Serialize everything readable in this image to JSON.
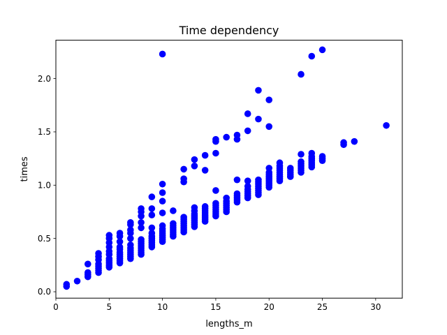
{
  "chart_data": {
    "type": "scatter",
    "title": "Time dependency",
    "xlabel": "lengths_m",
    "ylabel": "times",
    "xlim": [
      0,
      32.5
    ],
    "ylim": [
      -0.06,
      2.36
    ],
    "xticks": [
      0,
      5,
      10,
      15,
      20,
      25,
      30
    ],
    "yticks": [
      0.0,
      0.5,
      1.0,
      1.5,
      2.0
    ],
    "xtick_labels": [
      "0",
      "5",
      "10",
      "15",
      "20",
      "25",
      "30"
    ],
    "ytick_labels": [
      "0.0",
      "0.5",
      "1.0",
      "1.5",
      "2.0"
    ],
    "grid": false,
    "legend": false,
    "marker_color": "#0000ff",
    "series": [
      {
        "points": [
          [
            1,
            0.05
          ],
          [
            1,
            0.07
          ],
          [
            2,
            0.1
          ],
          [
            3,
            0.14
          ],
          [
            3,
            0.16
          ],
          [
            3,
            0.18
          ],
          [
            3,
            0.26
          ],
          [
            4,
            0.18
          ],
          [
            4,
            0.2
          ],
          [
            4,
            0.22
          ],
          [
            4,
            0.24
          ],
          [
            4,
            0.26
          ],
          [
            4,
            0.3
          ],
          [
            4,
            0.33
          ],
          [
            4,
            0.36
          ],
          [
            5,
            0.23
          ],
          [
            5,
            0.25
          ],
          [
            5,
            0.27
          ],
          [
            5,
            0.29
          ],
          [
            5,
            0.31
          ],
          [
            5,
            0.35
          ],
          [
            5,
            0.38
          ],
          [
            5,
            0.42
          ],
          [
            5,
            0.46
          ],
          [
            5,
            0.5
          ],
          [
            5,
            0.53
          ],
          [
            6,
            0.27
          ],
          [
            6,
            0.29
          ],
          [
            6,
            0.31
          ],
          [
            6,
            0.33
          ],
          [
            6,
            0.35
          ],
          [
            6,
            0.37
          ],
          [
            6,
            0.4
          ],
          [
            6,
            0.42
          ],
          [
            6,
            0.47
          ],
          [
            6,
            0.52
          ],
          [
            6,
            0.55
          ],
          [
            7,
            0.31
          ],
          [
            7,
            0.33
          ],
          [
            7,
            0.35
          ],
          [
            7,
            0.37
          ],
          [
            7,
            0.39
          ],
          [
            7,
            0.41
          ],
          [
            7,
            0.44
          ],
          [
            7,
            0.5
          ],
          [
            7,
            0.55
          ],
          [
            7,
            0.58
          ],
          [
            7,
            0.63
          ],
          [
            7,
            0.65
          ],
          [
            8,
            0.35
          ],
          [
            8,
            0.37
          ],
          [
            8,
            0.39
          ],
          [
            8,
            0.41
          ],
          [
            8,
            0.43
          ],
          [
            8,
            0.45
          ],
          [
            8,
            0.47
          ],
          [
            8,
            0.49
          ],
          [
            8,
            0.6
          ],
          [
            8,
            0.65
          ],
          [
            8,
            0.71
          ],
          [
            8,
            0.75
          ],
          [
            8,
            0.78
          ],
          [
            9,
            0.42
          ],
          [
            9,
            0.44
          ],
          [
            9,
            0.46
          ],
          [
            9,
            0.48
          ],
          [
            9,
            0.5
          ],
          [
            9,
            0.52
          ],
          [
            9,
            0.55
          ],
          [
            9,
            0.6
          ],
          [
            9,
            0.72
          ],
          [
            9,
            0.78
          ],
          [
            9,
            0.89
          ],
          [
            10,
            0.47
          ],
          [
            10,
            0.49
          ],
          [
            10,
            0.51
          ],
          [
            10,
            0.53
          ],
          [
            10,
            0.55
          ],
          [
            10,
            0.57
          ],
          [
            10,
            0.59
          ],
          [
            10,
            0.62
          ],
          [
            10,
            0.74
          ],
          [
            10,
            0.85
          ],
          [
            10,
            0.93
          ],
          [
            10,
            1.01
          ],
          [
            10,
            2.23
          ],
          [
            11,
            0.52
          ],
          [
            11,
            0.54
          ],
          [
            11,
            0.56
          ],
          [
            11,
            0.58
          ],
          [
            11,
            0.6
          ],
          [
            11,
            0.62
          ],
          [
            11,
            0.64
          ],
          [
            11,
            0.76
          ],
          [
            12,
            0.56
          ],
          [
            12,
            0.58
          ],
          [
            12,
            0.6
          ],
          [
            12,
            0.62
          ],
          [
            12,
            0.64
          ],
          [
            12,
            0.66
          ],
          [
            12,
            0.68
          ],
          [
            12,
            0.7
          ],
          [
            12,
            1.03
          ],
          [
            12,
            1.06
          ],
          [
            12,
            1.15
          ],
          [
            13,
            0.61
          ],
          [
            13,
            0.63
          ],
          [
            13,
            0.65
          ],
          [
            13,
            0.67
          ],
          [
            13,
            0.69
          ],
          [
            13,
            0.71
          ],
          [
            13,
            0.73
          ],
          [
            13,
            0.76
          ],
          [
            13,
            0.79
          ],
          [
            13,
            1.18
          ],
          [
            13,
            1.24
          ],
          [
            14,
            0.66
          ],
          [
            14,
            0.68
          ],
          [
            14,
            0.7
          ],
          [
            14,
            0.72
          ],
          [
            14,
            0.74
          ],
          [
            14,
            0.76
          ],
          [
            14,
            0.78
          ],
          [
            14,
            0.8
          ],
          [
            14,
            1.14
          ],
          [
            14,
            1.28
          ],
          [
            15,
            0.71
          ],
          [
            15,
            0.73
          ],
          [
            15,
            0.75
          ],
          [
            15,
            0.77
          ],
          [
            15,
            0.79
          ],
          [
            15,
            0.81
          ],
          [
            15,
            0.83
          ],
          [
            15,
            0.95
          ],
          [
            15,
            1.3
          ],
          [
            15,
            1.41
          ],
          [
            15,
            1.43
          ],
          [
            16,
            0.75
          ],
          [
            16,
            0.77
          ],
          [
            16,
            0.79
          ],
          [
            16,
            0.81
          ],
          [
            16,
            0.83
          ],
          [
            16,
            0.85
          ],
          [
            16,
            0.88
          ],
          [
            16,
            1.45
          ],
          [
            17,
            0.84
          ],
          [
            17,
            0.86
          ],
          [
            17,
            0.88
          ],
          [
            17,
            0.9
          ],
          [
            17,
            0.92
          ],
          [
            17,
            1.05
          ],
          [
            17,
            1.43
          ],
          [
            17,
            1.47
          ],
          [
            18,
            0.88
          ],
          [
            18,
            0.9
          ],
          [
            18,
            0.92
          ],
          [
            18,
            0.94
          ],
          [
            18,
            0.96
          ],
          [
            18,
            0.99
          ],
          [
            18,
            1.04
          ],
          [
            18,
            1.51
          ],
          [
            18,
            1.67
          ],
          [
            19,
            0.91
          ],
          [
            19,
            0.93
          ],
          [
            19,
            0.95
          ],
          [
            19,
            0.97
          ],
          [
            19,
            0.99
          ],
          [
            19,
            1.01
          ],
          [
            19,
            1.03
          ],
          [
            19,
            1.05
          ],
          [
            19,
            1.62
          ],
          [
            19,
            1.89
          ],
          [
            20,
            0.98
          ],
          [
            20,
            1.0
          ],
          [
            20,
            1.02
          ],
          [
            20,
            1.04
          ],
          [
            20,
            1.06
          ],
          [
            20,
            1.08
          ],
          [
            20,
            1.1
          ],
          [
            20,
            1.12
          ],
          [
            20,
            1.16
          ],
          [
            20,
            1.55
          ],
          [
            20,
            1.8
          ],
          [
            21,
            1.04
          ],
          [
            21,
            1.06
          ],
          [
            21,
            1.08
          ],
          [
            21,
            1.1
          ],
          [
            21,
            1.12
          ],
          [
            21,
            1.14
          ],
          [
            21,
            1.16
          ],
          [
            21,
            1.18
          ],
          [
            21,
            1.21
          ],
          [
            22,
            1.08
          ],
          [
            22,
            1.1
          ],
          [
            22,
            1.12
          ],
          [
            22,
            1.14
          ],
          [
            22,
            1.16
          ],
          [
            23,
            1.12
          ],
          [
            23,
            1.14
          ],
          [
            23,
            1.16
          ],
          [
            23,
            1.18
          ],
          [
            23,
            1.2
          ],
          [
            23,
            1.22
          ],
          [
            23,
            1.29
          ],
          [
            23,
            2.04
          ],
          [
            24,
            1.17
          ],
          [
            24,
            1.19
          ],
          [
            24,
            1.21
          ],
          [
            24,
            1.23
          ],
          [
            24,
            1.25
          ],
          [
            24,
            1.27
          ],
          [
            24,
            1.3
          ],
          [
            24,
            2.21
          ],
          [
            25,
            1.23
          ],
          [
            25,
            1.25
          ],
          [
            25,
            1.27
          ],
          [
            25,
            2.27
          ],
          [
            27,
            1.38
          ],
          [
            27,
            1.4
          ],
          [
            28,
            1.41
          ],
          [
            31,
            1.56
          ]
        ]
      }
    ]
  }
}
